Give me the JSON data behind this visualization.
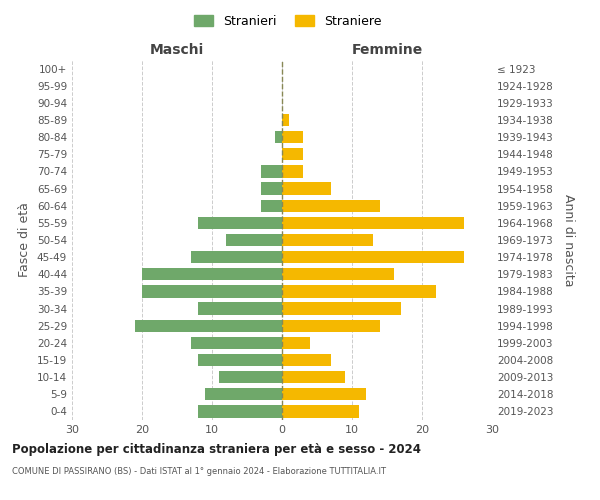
{
  "age_groups": [
    "0-4",
    "5-9",
    "10-14",
    "15-19",
    "20-24",
    "25-29",
    "30-34",
    "35-39",
    "40-44",
    "45-49",
    "50-54",
    "55-59",
    "60-64",
    "65-69",
    "70-74",
    "75-79",
    "80-84",
    "85-89",
    "90-94",
    "95-99",
    "100+"
  ],
  "birth_years": [
    "2019-2023",
    "2014-2018",
    "2009-2013",
    "2004-2008",
    "1999-2003",
    "1994-1998",
    "1989-1993",
    "1984-1988",
    "1979-1983",
    "1974-1978",
    "1969-1973",
    "1964-1968",
    "1959-1963",
    "1954-1958",
    "1949-1953",
    "1944-1948",
    "1939-1943",
    "1934-1938",
    "1929-1933",
    "1924-1928",
    "≤ 1923"
  ],
  "males": [
    12,
    11,
    9,
    12,
    13,
    21,
    12,
    20,
    20,
    13,
    8,
    12,
    3,
    3,
    3,
    0,
    1,
    0,
    0,
    0,
    0
  ],
  "females": [
    11,
    12,
    9,
    7,
    4,
    14,
    17,
    22,
    16,
    26,
    13,
    26,
    14,
    7,
    3,
    3,
    3,
    1,
    0,
    0,
    0
  ],
  "male_color": "#6fa86a",
  "female_color": "#f5b800",
  "title": "Popolazione per cittadinanza straniera per età e sesso - 2024",
  "subtitle": "COMUNE DI PASSIRANO (BS) - Dati ISTAT al 1° gennaio 2024 - Elaborazione TUTTITALIA.IT",
  "xlabel_left": "Maschi",
  "xlabel_right": "Femmine",
  "ylabel_left": "Fasce di età",
  "ylabel_right": "Anni di nascita",
  "legend_male": "Stranieri",
  "legend_female": "Straniere",
  "xlim": 30,
  "background_color": "#ffffff",
  "grid_color": "#cccccc"
}
